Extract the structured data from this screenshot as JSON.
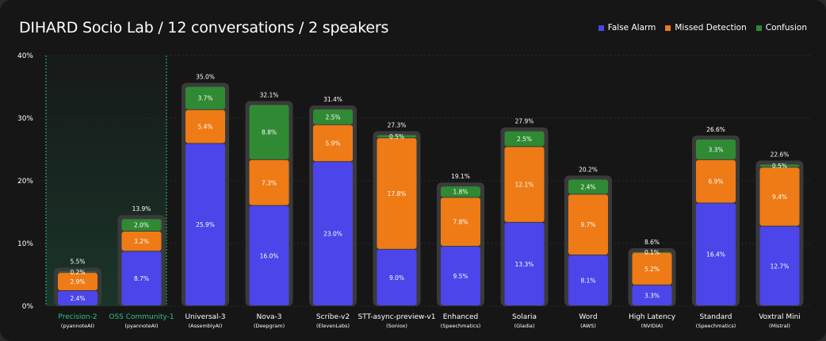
{
  "title": "DIHARD Socio Lab / 12 conversations / 2 speakers",
  "colors": {
    "false_alarm": "#4b45ea",
    "missed_detection": "#ee7b16",
    "confusion": "#2f8a33",
    "highlight": "#2fc285",
    "background": "#161616"
  },
  "legend": [
    {
      "label": "False Alarm",
      "color": "#4b45ea"
    },
    {
      "label": "Missed Detection",
      "color": "#ee7b16"
    },
    {
      "label": "Confusion",
      "color": "#2f8a33"
    }
  ],
  "chart_data": {
    "type": "bar",
    "stacked": true,
    "title": "DIHARD Socio Lab / 12 conversations / 2 speakers",
    "ylim": [
      0,
      40
    ],
    "yticks": [
      "0%",
      "10%",
      "20%",
      "30%",
      "40%"
    ],
    "ytick_values": [
      0,
      10,
      20,
      30,
      40
    ],
    "grid": true,
    "legend_position": "top-right",
    "categories": [
      {
        "name": "Precision-2",
        "provider": "(pyannoteAI)",
        "highlight": true
      },
      {
        "name": "OSS Community-1",
        "provider": "(pyannoteAI)",
        "highlight": true
      },
      {
        "name": "Universal-3",
        "provider": "(AssemblyAI)",
        "highlight": false
      },
      {
        "name": "Nova-3",
        "provider": "(Deepgram)",
        "highlight": false
      },
      {
        "name": "Scribe-v2",
        "provider": "(ElevenLabs)",
        "highlight": false
      },
      {
        "name": "STT-async-preview-v1",
        "provider": "(Soniox)",
        "highlight": false
      },
      {
        "name": "Enhanced",
        "provider": "(Speechmatics)",
        "highlight": false
      },
      {
        "name": "Solaria",
        "provider": "(Gladia)",
        "highlight": false
      },
      {
        "name": "Word",
        "provider": "(AWS)",
        "highlight": false
      },
      {
        "name": "High Latency",
        "provider": "(NVIDIA)",
        "highlight": false
      },
      {
        "name": "Standard",
        "provider": "(Speechmatics)",
        "highlight": false
      },
      {
        "name": "Voxtral Mini",
        "provider": "(Mistral)",
        "highlight": false
      }
    ],
    "series": [
      {
        "name": "False Alarm",
        "key": "false_alarm",
        "values": [
          2.4,
          8.7,
          25.9,
          16.0,
          23.0,
          9.0,
          9.5,
          13.3,
          8.1,
          3.3,
          16.4,
          12.7
        ],
        "labels": [
          "2.4%",
          "8.7%",
          "25.9%",
          "16.0%",
          "23.0%",
          "9.0%",
          "9.5%",
          "13.3%",
          "8.1%",
          "3.3%",
          "16.4%",
          "12.7%"
        ]
      },
      {
        "name": "Missed Detection",
        "key": "missed_detection",
        "values": [
          2.9,
          3.2,
          5.4,
          7.3,
          5.9,
          17.8,
          7.8,
          12.1,
          9.7,
          5.2,
          6.9,
          9.4
        ],
        "labels": [
          "2.9%",
          "3.2%",
          "5.4%",
          "7.3%",
          "5.9%",
          "17.8%",
          "7.8%",
          "12.1%",
          "9.7%",
          "5.2%",
          "6.9%",
          "9.4%"
        ]
      },
      {
        "name": "Confusion",
        "key": "confusion",
        "values": [
          0.2,
          2.0,
          3.7,
          8.8,
          2.5,
          0.5,
          1.8,
          2.5,
          2.4,
          0.1,
          3.3,
          0.5
        ],
        "labels": [
          "0.2%",
          "2.0%",
          "3.7%",
          "8.8%",
          "2.5%",
          "0.5%",
          "1.8%",
          "2.5%",
          "2.4%",
          "0.1%",
          "3.3%",
          "0.5%"
        ]
      }
    ],
    "totals": [
      5.5,
      13.9,
      35.0,
      32.1,
      31.4,
      27.3,
      19.1,
      27.9,
      20.2,
      8.6,
      26.6,
      22.6
    ],
    "total_labels": [
      "5.5%",
      "13.9%",
      "35.0%",
      "32.1%",
      "31.4%",
      "27.3%",
      "19.1%",
      "27.9%",
      "20.2%",
      "8.6%",
      "26.6%",
      "22.6%"
    ]
  }
}
